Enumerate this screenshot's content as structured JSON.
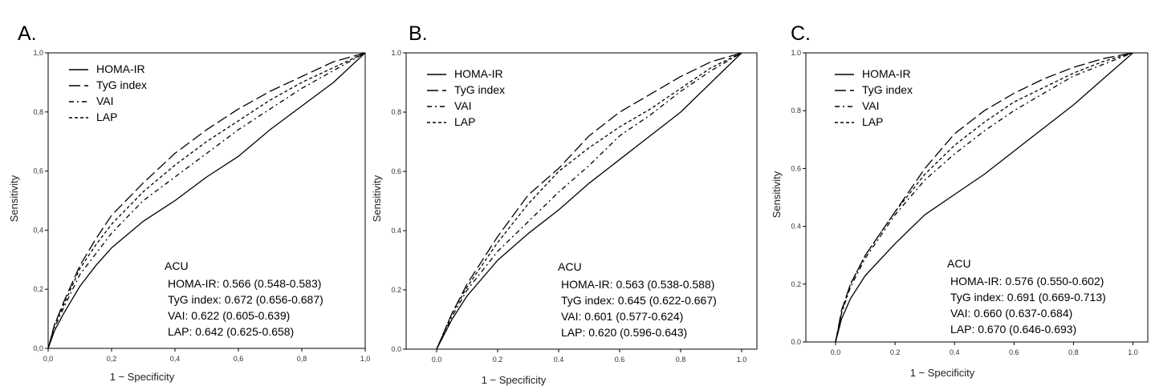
{
  "figure": {
    "panels": [
      "A.",
      "B.",
      "C."
    ],
    "legend_entries": [
      "HOMA-IR",
      "TyG index",
      "VAI",
      "LAP"
    ]
  },
  "chart_data": [
    {
      "type": "line",
      "panel": "A.",
      "title": "",
      "xlabel": "1 − Specificity",
      "ylabel": "Sensitivity",
      "xlim": [
        0,
        1
      ],
      "ylim": [
        0,
        1
      ],
      "x_ticks": [
        "0,0",
        "0,2",
        "0,4",
        "0,6",
        "0,8",
        "1,0"
      ],
      "y_ticks": [
        "0,0",
        "0,2",
        "0,4",
        "0,6",
        "0,8",
        "1,0"
      ],
      "grid": false,
      "legend_position": "top-left",
      "series": [
        {
          "name": "HOMA-IR",
          "dash": "solid",
          "points": [
            [
              0,
              0
            ],
            [
              0.02,
              0.06
            ],
            [
              0.05,
              0.12
            ],
            [
              0.1,
              0.21
            ],
            [
              0.15,
              0.28
            ],
            [
              0.2,
              0.34
            ],
            [
              0.3,
              0.43
            ],
            [
              0.4,
              0.5
            ],
            [
              0.5,
              0.58
            ],
            [
              0.6,
              0.65
            ],
            [
              0.7,
              0.74
            ],
            [
              0.8,
              0.82
            ],
            [
              0.9,
              0.9
            ],
            [
              1,
              1
            ]
          ]
        },
        {
          "name": "TyG index",
          "dash": "long-dash",
          "points": [
            [
              0,
              0
            ],
            [
              0.02,
              0.08
            ],
            [
              0.05,
              0.16
            ],
            [
              0.1,
              0.28
            ],
            [
              0.15,
              0.37
            ],
            [
              0.2,
              0.45
            ],
            [
              0.3,
              0.56
            ],
            [
              0.4,
              0.66
            ],
            [
              0.5,
              0.74
            ],
            [
              0.6,
              0.81
            ],
            [
              0.7,
              0.87
            ],
            [
              0.8,
              0.92
            ],
            [
              0.9,
              0.97
            ],
            [
              1,
              1
            ]
          ]
        },
        {
          "name": "VAI",
          "dash": "dash-dot",
          "points": [
            [
              0,
              0
            ],
            [
              0.02,
              0.07
            ],
            [
              0.05,
              0.14
            ],
            [
              0.1,
              0.25
            ],
            [
              0.15,
              0.32
            ],
            [
              0.2,
              0.39
            ],
            [
              0.3,
              0.5
            ],
            [
              0.4,
              0.58
            ],
            [
              0.5,
              0.66
            ],
            [
              0.6,
              0.74
            ],
            [
              0.7,
              0.81
            ],
            [
              0.8,
              0.88
            ],
            [
              0.9,
              0.94
            ],
            [
              1,
              1
            ]
          ]
        },
        {
          "name": "LAP",
          "dash": "short-dash",
          "points": [
            [
              0,
              0
            ],
            [
              0.02,
              0.08
            ],
            [
              0.05,
              0.15
            ],
            [
              0.1,
              0.27
            ],
            [
              0.15,
              0.35
            ],
            [
              0.2,
              0.42
            ],
            [
              0.3,
              0.53
            ],
            [
              0.4,
              0.62
            ],
            [
              0.5,
              0.7
            ],
            [
              0.6,
              0.77
            ],
            [
              0.7,
              0.84
            ],
            [
              0.8,
              0.9
            ],
            [
              0.9,
              0.95
            ],
            [
              1,
              1
            ]
          ]
        }
      ],
      "annotations": {
        "heading": "ACU",
        "lines": [
          "HOMA-IR: 0.566 (0.548-0.583)",
          "TyG index: 0.672 (0.656-0.687)",
          "VAI: 0.622 (0.605-0.639)",
          "LAP: 0.642 (0.625-0.658)"
        ]
      }
    },
    {
      "type": "line",
      "panel": "B.",
      "title": "",
      "xlabel": "1 − Specificity",
      "ylabel": "Sensitivity",
      "xlim": [
        -0.1,
        1.05
      ],
      "ylim": [
        0,
        1
      ],
      "x_ticks": [
        "0.0",
        "0.2",
        "0.4",
        "0.6",
        "0.8",
        "1.0"
      ],
      "y_ticks": [
        "0.0",
        "0.2",
        "0.4",
        "0.6",
        "0.8",
        "1.0"
      ],
      "grid": false,
      "legend_position": "top-left",
      "series": [
        {
          "name": "HOMA-IR",
          "dash": "solid",
          "points": [
            [
              0,
              0
            ],
            [
              0.05,
              0.1
            ],
            [
              0.1,
              0.18
            ],
            [
              0.2,
              0.3
            ],
            [
              0.3,
              0.39
            ],
            [
              0.4,
              0.47
            ],
            [
              0.5,
              0.56
            ],
            [
              0.6,
              0.64
            ],
            [
              0.7,
              0.72
            ],
            [
              0.8,
              0.8
            ],
            [
              0.9,
              0.9
            ],
            [
              1,
              1
            ]
          ]
        },
        {
          "name": "TyG index",
          "dash": "long-dash",
          "points": [
            [
              0,
              0
            ],
            [
              0.05,
              0.12
            ],
            [
              0.1,
              0.22
            ],
            [
              0.2,
              0.38
            ],
            [
              0.3,
              0.52
            ],
            [
              0.4,
              0.61
            ],
            [
              0.5,
              0.72
            ],
            [
              0.6,
              0.8
            ],
            [
              0.7,
              0.86
            ],
            [
              0.8,
              0.92
            ],
            [
              0.9,
              0.97
            ],
            [
              1,
              1
            ]
          ]
        },
        {
          "name": "VAI",
          "dash": "dash-dot",
          "points": [
            [
              0,
              0
            ],
            [
              0.05,
              0.11
            ],
            [
              0.1,
              0.2
            ],
            [
              0.2,
              0.33
            ],
            [
              0.3,
              0.43
            ],
            [
              0.4,
              0.53
            ],
            [
              0.5,
              0.62
            ],
            [
              0.6,
              0.72
            ],
            [
              0.7,
              0.79
            ],
            [
              0.8,
              0.87
            ],
            [
              0.9,
              0.94
            ],
            [
              1,
              1
            ]
          ]
        },
        {
          "name": "LAP",
          "dash": "short-dash",
          "points": [
            [
              0,
              0
            ],
            [
              0.05,
              0.12
            ],
            [
              0.1,
              0.21
            ],
            [
              0.2,
              0.36
            ],
            [
              0.3,
              0.49
            ],
            [
              0.4,
              0.6
            ],
            [
              0.5,
              0.68
            ],
            [
              0.6,
              0.75
            ],
            [
              0.7,
              0.81
            ],
            [
              0.8,
              0.88
            ],
            [
              0.9,
              0.95
            ],
            [
              1,
              1
            ]
          ]
        }
      ],
      "annotations": {
        "heading": "ACU",
        "lines": [
          "HOMA-IR: 0.563 (0.538-0.588)",
          "TyG index: 0.645 (0.622-0.667)",
          "VAI: 0.601 (0.577-0.624)",
          "LAP: 0.620 (0.596-0.643)"
        ]
      }
    },
    {
      "type": "line",
      "panel": "C.",
      "title": "",
      "xlabel": "1 − Specificity",
      "ylabel": "Sensitivity",
      "xlim": [
        -0.1,
        1.05
      ],
      "ylim": [
        0,
        1
      ],
      "x_ticks": [
        "0.0",
        "0.2",
        "0.4",
        "0.6",
        "0.8",
        "1.0"
      ],
      "y_ticks": [
        "0.0",
        "0.2",
        "0.4",
        "0.6",
        "0.8",
        "1.0"
      ],
      "grid": false,
      "legend_position": "top-left",
      "series": [
        {
          "name": "HOMA-IR",
          "dash": "solid",
          "points": [
            [
              0,
              0
            ],
            [
              0.02,
              0.08
            ],
            [
              0.05,
              0.15
            ],
            [
              0.1,
              0.23
            ],
            [
              0.2,
              0.34
            ],
            [
              0.3,
              0.44
            ],
            [
              0.4,
              0.51
            ],
            [
              0.5,
              0.58
            ],
            [
              0.6,
              0.66
            ],
            [
              0.7,
              0.74
            ],
            [
              0.8,
              0.82
            ],
            [
              0.9,
              0.91
            ],
            [
              1,
              1
            ]
          ]
        },
        {
          "name": "TyG index",
          "dash": "long-dash",
          "points": [
            [
              0,
              0
            ],
            [
              0.02,
              0.11
            ],
            [
              0.05,
              0.2
            ],
            [
              0.1,
              0.3
            ],
            [
              0.2,
              0.45
            ],
            [
              0.3,
              0.6
            ],
            [
              0.4,
              0.72
            ],
            [
              0.5,
              0.8
            ],
            [
              0.6,
              0.86
            ],
            [
              0.7,
              0.91
            ],
            [
              0.8,
              0.95
            ],
            [
              0.9,
              0.98
            ],
            [
              1,
              1
            ]
          ]
        },
        {
          "name": "VAI",
          "dash": "dash-dot",
          "points": [
            [
              0,
              0
            ],
            [
              0.02,
              0.1
            ],
            [
              0.05,
              0.19
            ],
            [
              0.1,
              0.29
            ],
            [
              0.2,
              0.44
            ],
            [
              0.3,
              0.56
            ],
            [
              0.4,
              0.65
            ],
            [
              0.5,
              0.73
            ],
            [
              0.6,
              0.8
            ],
            [
              0.7,
              0.86
            ],
            [
              0.8,
              0.92
            ],
            [
              0.9,
              0.96
            ],
            [
              1,
              1
            ]
          ]
        },
        {
          "name": "LAP",
          "dash": "short-dash",
          "points": [
            [
              0,
              0
            ],
            [
              0.02,
              0.1
            ],
            [
              0.05,
              0.2
            ],
            [
              0.1,
              0.3
            ],
            [
              0.2,
              0.45
            ],
            [
              0.3,
              0.58
            ],
            [
              0.4,
              0.68
            ],
            [
              0.5,
              0.76
            ],
            [
              0.6,
              0.83
            ],
            [
              0.7,
              0.88
            ],
            [
              0.8,
              0.93
            ],
            [
              0.9,
              0.97
            ],
            [
              1,
              1
            ]
          ]
        }
      ],
      "annotations": {
        "heading": "ACU",
        "lines": [
          "HOMA-IR: 0.576 (0.550-0.602)",
          "TyG index: 0.691 (0.669-0.713)",
          "VAI: 0.660 (0.637-0.684)",
          "LAP: 0.670 (0.646-0.693)"
        ]
      }
    }
  ]
}
